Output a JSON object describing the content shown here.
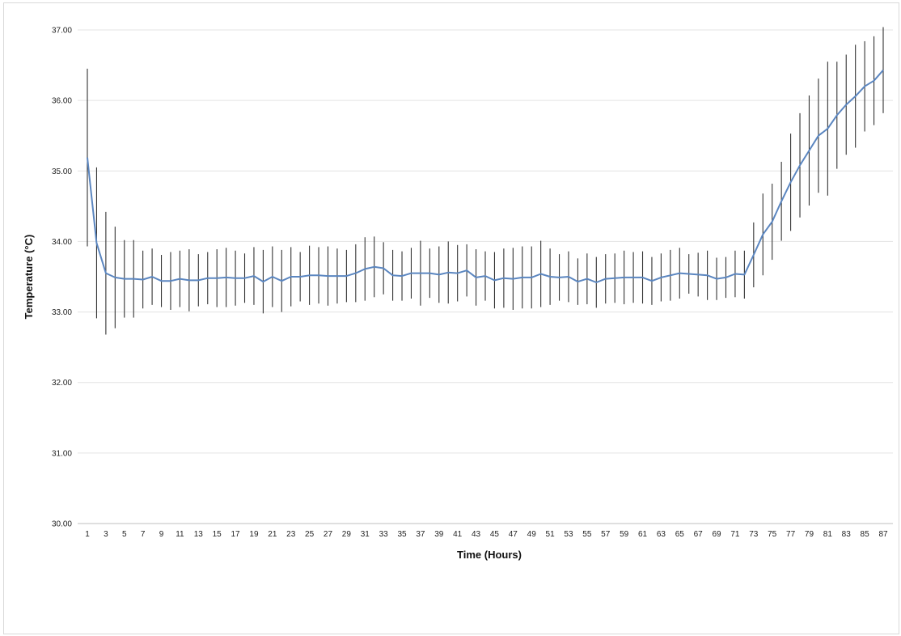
{
  "chart_data": {
    "type": "line",
    "title": "",
    "xlabel": "Time (Hours)",
    "ylabel": "Temperature (°C)",
    "ylim": [
      30,
      37
    ],
    "yticks": [
      "30.00",
      "31.00",
      "32.00",
      "33.00",
      "34.00",
      "35.00",
      "36.00",
      "37.00"
    ],
    "xlim": [
      1,
      87
    ],
    "xtick_labels": [
      1,
      3,
      5,
      7,
      9,
      11,
      13,
      15,
      17,
      19,
      21,
      23,
      25,
      27,
      29,
      31,
      33,
      35,
      37,
      39,
      41,
      43,
      45,
      47,
      49,
      51,
      53,
      55,
      57,
      59,
      61,
      63,
      65,
      67,
      69,
      71,
      73,
      75,
      77,
      79,
      81,
      83,
      85,
      87
    ],
    "grid": true,
    "legend": "none",
    "line_color": "#5b86c0",
    "errorbar_color": "#333333",
    "series": [
      {
        "x": [
          1,
          2,
          3,
          4,
          5,
          6,
          7,
          8,
          9,
          10,
          11,
          12,
          13,
          14,
          15,
          16,
          17,
          18,
          19,
          20,
          21,
          22,
          23,
          24,
          25,
          26,
          27,
          28,
          29,
          30,
          31,
          32,
          33,
          34,
          35,
          36,
          37,
          38,
          39,
          40,
          41,
          42,
          43,
          44,
          45,
          46,
          47,
          48,
          49,
          50,
          51,
          52,
          53,
          54,
          55,
          56,
          57,
          58,
          59,
          60,
          61,
          62,
          63,
          64,
          65,
          66,
          67,
          68,
          69,
          70,
          71,
          72,
          73,
          74,
          75,
          76,
          77,
          78,
          79,
          80,
          81,
          82,
          83,
          84,
          85,
          86,
          87
        ],
        "values": [
          35.19,
          33.98,
          33.55,
          33.49,
          33.47,
          33.47,
          33.46,
          33.5,
          33.44,
          33.44,
          33.47,
          33.45,
          33.45,
          33.48,
          33.48,
          33.49,
          33.48,
          33.48,
          33.51,
          33.43,
          33.5,
          33.44,
          33.5,
          33.5,
          33.52,
          33.52,
          33.51,
          33.51,
          33.51,
          33.55,
          33.61,
          33.64,
          33.62,
          33.52,
          33.51,
          33.55,
          33.55,
          33.55,
          33.53,
          33.56,
          33.55,
          33.59,
          33.49,
          33.51,
          33.45,
          33.48,
          33.47,
          33.49,
          33.49,
          33.54,
          33.5,
          33.49,
          33.5,
          33.43,
          33.47,
          33.42,
          33.47,
          33.48,
          33.49,
          33.49,
          33.49,
          33.44,
          33.49,
          33.52,
          33.55,
          33.54,
          33.53,
          33.52,
          33.47,
          33.49,
          33.54,
          33.53,
          33.81,
          34.1,
          34.28,
          34.57,
          34.84,
          35.08,
          35.29,
          35.5,
          35.6,
          35.79,
          35.94,
          36.06,
          36.2,
          36.28,
          36.43
        ],
        "error": [
          1.26,
          1.07,
          0.87,
          0.72,
          0.55,
          0.55,
          0.41,
          0.4,
          0.37,
          0.41,
          0.4,
          0.44,
          0.37,
          0.37,
          0.41,
          0.42,
          0.39,
          0.35,
          0.41,
          0.45,
          0.43,
          0.44,
          0.42,
          0.35,
          0.42,
          0.4,
          0.42,
          0.39,
          0.37,
          0.41,
          0.45,
          0.43,
          0.37,
          0.36,
          0.35,
          0.36,
          0.46,
          0.35,
          0.4,
          0.44,
          0.4,
          0.37,
          0.4,
          0.35,
          0.4,
          0.42,
          0.44,
          0.44,
          0.44,
          0.47,
          0.4,
          0.33,
          0.36,
          0.33,
          0.36,
          0.36,
          0.35,
          0.35,
          0.38,
          0.36,
          0.37,
          0.34,
          0.34,
          0.36,
          0.36,
          0.28,
          0.31,
          0.35,
          0.3,
          0.29,
          0.33,
          0.34,
          0.46,
          0.58,
          0.54,
          0.56,
          0.69,
          0.74,
          0.78,
          0.81,
          0.95,
          0.76,
          0.71,
          0.73,
          0.64,
          0.63,
          0.61
        ]
      }
    ]
  }
}
